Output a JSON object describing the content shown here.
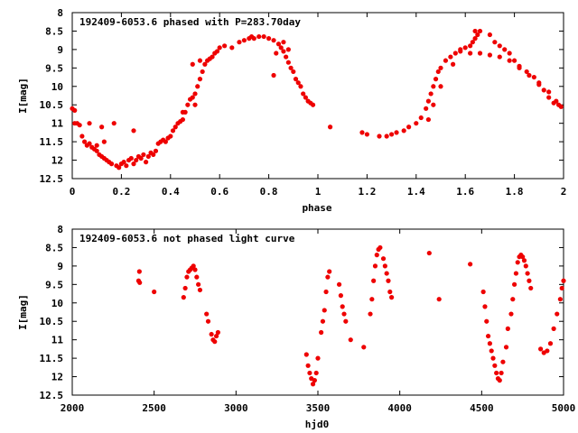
{
  "chart_data": [
    {
      "type": "scatter",
      "title": "192409-6053.6 phased with P=283.70day",
      "xlabel": "phase",
      "ylabel": "I[mag]",
      "xlim": [
        0,
        2
      ],
      "ylim": [
        12.5,
        8
      ],
      "y_inverted": true,
      "grid": false,
      "marker_color": "#ee0000",
      "x_ticks": [
        "0",
        "0.2",
        "0.4",
        "0.6",
        "0.8",
        "1",
        "1.2",
        "1.4",
        "1.6",
        "1.8",
        "2"
      ],
      "y_ticks": [
        "8",
        "8.5",
        "9",
        "9.5",
        "10",
        "10.5",
        "11",
        "11.5",
        "12",
        "12.5"
      ],
      "series": [
        {
          "points": [
            [
              0.0,
              10.6
            ],
            [
              0.01,
              10.65
            ],
            [
              0.01,
              11.0
            ],
            [
              0.02,
              11.0
            ],
            [
              0.03,
              11.05
            ],
            [
              0.04,
              11.35
            ],
            [
              0.05,
              11.5
            ],
            [
              0.06,
              11.6
            ],
            [
              0.07,
              11.55
            ],
            [
              0.08,
              11.65
            ],
            [
              0.09,
              11.7
            ],
            [
              0.1,
              11.75
            ],
            [
              0.11,
              11.85
            ],
            [
              0.12,
              11.9
            ],
            [
              0.13,
              11.95
            ],
            [
              0.14,
              12.0
            ],
            [
              0.15,
              12.05
            ],
            [
              0.16,
              12.1
            ],
            [
              0.18,
              12.15
            ],
            [
              0.19,
              12.2
            ],
            [
              0.2,
              12.1
            ],
            [
              0.21,
              12.05
            ],
            [
              0.22,
              12.15
            ],
            [
              0.23,
              12.0
            ],
            [
              0.24,
              11.95
            ],
            [
              0.25,
              12.1
            ],
            [
              0.26,
              12.0
            ],
            [
              0.27,
              11.9
            ],
            [
              0.28,
              11.95
            ],
            [
              0.29,
              11.85
            ],
            [
              0.3,
              12.05
            ],
            [
              0.31,
              11.9
            ],
            [
              0.32,
              11.8
            ],
            [
              0.33,
              11.85
            ],
            [
              0.34,
              11.75
            ],
            [
              0.35,
              11.55
            ],
            [
              0.36,
              11.5
            ],
            [
              0.37,
              11.45
            ],
            [
              0.38,
              11.5
            ],
            [
              0.39,
              11.4
            ],
            [
              0.4,
              11.35
            ],
            [
              0.41,
              11.2
            ],
            [
              0.42,
              11.1
            ],
            [
              0.43,
              11.0
            ],
            [
              0.44,
              10.95
            ],
            [
              0.45,
              10.9
            ],
            [
              0.46,
              10.7
            ],
            [
              0.47,
              10.5
            ],
            [
              0.48,
              10.35
            ],
            [
              0.49,
              10.3
            ],
            [
              0.5,
              10.2
            ],
            [
              0.51,
              10.0
            ],
            [
              0.52,
              9.8
            ],
            [
              0.53,
              9.6
            ],
            [
              0.54,
              9.4
            ],
            [
              0.55,
              9.3
            ],
            [
              0.56,
              9.25
            ],
            [
              0.57,
              9.2
            ],
            [
              0.58,
              9.1
            ],
            [
              0.59,
              9.05
            ],
            [
              0.6,
              8.95
            ],
            [
              0.62,
              8.9
            ],
            [
              0.65,
              8.95
            ],
            [
              0.68,
              8.8
            ],
            [
              0.7,
              8.75
            ],
            [
              0.72,
              8.7
            ],
            [
              0.73,
              8.65
            ],
            [
              0.74,
              8.7
            ],
            [
              0.76,
              8.65
            ],
            [
              0.78,
              8.65
            ],
            [
              0.8,
              8.7
            ],
            [
              0.82,
              8.75
            ],
            [
              0.84,
              8.85
            ],
            [
              0.85,
              8.95
            ],
            [
              0.86,
              9.05
            ],
            [
              0.87,
              9.2
            ],
            [
              0.88,
              9.35
            ],
            [
              0.89,
              9.5
            ],
            [
              0.9,
              9.6
            ],
            [
              0.91,
              9.8
            ],
            [
              0.92,
              9.9
            ],
            [
              0.93,
              10.0
            ],
            [
              0.94,
              10.2
            ],
            [
              0.95,
              10.3
            ],
            [
              0.96,
              10.4
            ],
            [
              0.97,
              10.45
            ],
            [
              0.98,
              10.5
            ],
            [
              0.07,
              11.0
            ],
            [
              0.12,
              11.1
            ],
            [
              0.17,
              11.0
            ],
            [
              0.1,
              11.6
            ],
            [
              0.13,
              11.5
            ],
            [
              0.25,
              11.2
            ],
            [
              0.45,
              10.7
            ],
            [
              0.49,
              9.4
            ],
            [
              0.52,
              9.3
            ],
            [
              0.5,
              10.5
            ],
            [
              0.83,
              9.1
            ],
            [
              0.86,
              8.8
            ],
            [
              0.88,
              9.0
            ],
            [
              0.82,
              9.7
            ],
            [
              1.05,
              11.1
            ],
            [
              1.18,
              11.25
            ],
            [
              1.2,
              11.3
            ],
            [
              1.25,
              11.35
            ],
            [
              1.28,
              11.35
            ],
            [
              1.3,
              11.3
            ],
            [
              1.32,
              11.25
            ],
            [
              1.35,
              11.2
            ],
            [
              1.37,
              11.1
            ],
            [
              1.4,
              11.0
            ],
            [
              1.42,
              10.85
            ],
            [
              1.44,
              10.6
            ],
            [
              1.45,
              10.4
            ],
            [
              1.46,
              10.2
            ],
            [
              1.47,
              10.0
            ],
            [
              1.48,
              9.8
            ],
            [
              1.49,
              9.6
            ],
            [
              1.5,
              9.5
            ],
            [
              1.52,
              9.3
            ],
            [
              1.54,
              9.2
            ],
            [
              1.56,
              9.1
            ],
            [
              1.58,
              9.0
            ],
            [
              1.6,
              8.95
            ],
            [
              1.62,
              8.9
            ],
            [
              1.63,
              8.8
            ],
            [
              1.64,
              8.7
            ],
            [
              1.65,
              8.6
            ],
            [
              1.66,
              8.5
            ],
            [
              1.7,
              8.6
            ],
            [
              1.72,
              8.8
            ],
            [
              1.74,
              8.9
            ],
            [
              1.76,
              9.0
            ],
            [
              1.78,
              9.1
            ],
            [
              1.8,
              9.3
            ],
            [
              1.82,
              9.45
            ],
            [
              1.85,
              9.6
            ],
            [
              1.88,
              9.75
            ],
            [
              1.9,
              9.9
            ],
            [
              1.92,
              10.1
            ],
            [
              1.94,
              10.3
            ],
            [
              1.96,
              10.45
            ],
            [
              1.98,
              10.5
            ],
            [
              1.99,
              10.55
            ],
            [
              1.58,
              9.05
            ],
            [
              1.62,
              9.1
            ],
            [
              1.66,
              9.1
            ],
            [
              1.7,
              9.15
            ],
            [
              1.74,
              9.2
            ],
            [
              1.78,
              9.3
            ],
            [
              1.82,
              9.5
            ],
            [
              1.86,
              9.7
            ],
            [
              1.9,
              9.95
            ],
            [
              1.94,
              10.15
            ],
            [
              1.97,
              10.4
            ],
            [
              1.64,
              8.5
            ],
            [
              1.55,
              9.4
            ],
            [
              1.5,
              10.0
            ],
            [
              1.47,
              10.5
            ],
            [
              1.45,
              10.9
            ]
          ]
        }
      ]
    },
    {
      "type": "scatter",
      "title": "192409-6053.6 not phased light curve",
      "xlabel": "hjd0",
      "ylabel": "I[mag]",
      "xlim": [
        2000,
        5000
      ],
      "ylim": [
        12.5,
        8
      ],
      "y_inverted": true,
      "grid": false,
      "marker_color": "#ee0000",
      "x_ticks": [
        "2000",
        "2500",
        "3000",
        "3500",
        "4000",
        "4500",
        "5000"
      ],
      "y_ticks": [
        "8",
        "8.5",
        "9",
        "9.5",
        "10",
        "10.5",
        "11",
        "11.5",
        "12",
        "12.5"
      ],
      "series": [
        {
          "points": [
            [
              2405,
              9.4
            ],
            [
              2410,
              9.15
            ],
            [
              2412,
              9.45
            ],
            [
              2500,
              9.7
            ],
            [
              2680,
              9.85
            ],
            [
              2690,
              9.6
            ],
            [
              2700,
              9.3
            ],
            [
              2710,
              9.15
            ],
            [
              2720,
              9.1
            ],
            [
              2730,
              9.05
            ],
            [
              2740,
              9.0
            ],
            [
              2750,
              9.1
            ],
            [
              2760,
              9.3
            ],
            [
              2770,
              9.5
            ],
            [
              2780,
              9.65
            ],
            [
              2820,
              10.3
            ],
            [
              2830,
              10.5
            ],
            [
              2850,
              10.85
            ],
            [
              2860,
              11.0
            ],
            [
              2870,
              11.05
            ],
            [
              2880,
              10.9
            ],
            [
              2890,
              10.8
            ],
            [
              3430,
              11.4
            ],
            [
              3440,
              11.7
            ],
            [
              3450,
              11.9
            ],
            [
              3460,
              12.05
            ],
            [
              3470,
              12.2
            ],
            [
              3480,
              12.1
            ],
            [
              3490,
              11.9
            ],
            [
              3500,
              11.5
            ],
            [
              3520,
              10.8
            ],
            [
              3530,
              10.5
            ],
            [
              3540,
              10.2
            ],
            [
              3550,
              9.7
            ],
            [
              3560,
              9.3
            ],
            [
              3570,
              9.15
            ],
            [
              3630,
              9.5
            ],
            [
              3640,
              9.8
            ],
            [
              3650,
              10.1
            ],
            [
              3660,
              10.3
            ],
            [
              3670,
              10.5
            ],
            [
              3700,
              11.0
            ],
            [
              3780,
              11.2
            ],
            [
              3820,
              10.3
            ],
            [
              3830,
              9.9
            ],
            [
              3840,
              9.4
            ],
            [
              3850,
              9.0
            ],
            [
              3860,
              8.7
            ],
            [
              3870,
              8.55
            ],
            [
              3880,
              8.5
            ],
            [
              3900,
              8.8
            ],
            [
              3910,
              9.0
            ],
            [
              3920,
              9.2
            ],
            [
              3930,
              9.4
            ],
            [
              3940,
              9.7
            ],
            [
              3950,
              9.85
            ],
            [
              4180,
              8.65
            ],
            [
              4240,
              9.9
            ],
            [
              4430,
              8.95
            ],
            [
              4510,
              9.7
            ],
            [
              4520,
              10.1
            ],
            [
              4530,
              10.5
            ],
            [
              4540,
              10.9
            ],
            [
              4550,
              11.1
            ],
            [
              4560,
              11.3
            ],
            [
              4570,
              11.5
            ],
            [
              4580,
              11.7
            ],
            [
              4590,
              11.9
            ],
            [
              4600,
              12.05
            ],
            [
              4610,
              12.1
            ],
            [
              4620,
              11.9
            ],
            [
              4630,
              11.6
            ],
            [
              4650,
              11.2
            ],
            [
              4660,
              10.7
            ],
            [
              4680,
              10.3
            ],
            [
              4690,
              9.9
            ],
            [
              4700,
              9.5
            ],
            [
              4710,
              9.2
            ],
            [
              4720,
              8.9
            ],
            [
              4730,
              8.75
            ],
            [
              4740,
              8.7
            ],
            [
              4750,
              8.75
            ],
            [
              4760,
              8.85
            ],
            [
              4770,
              9.0
            ],
            [
              4780,
              9.2
            ],
            [
              4790,
              9.4
            ],
            [
              4800,
              9.6
            ],
            [
              4860,
              11.25
            ],
            [
              4880,
              11.35
            ],
            [
              4900,
              11.3
            ],
            [
              4920,
              11.1
            ],
            [
              4940,
              10.7
            ],
            [
              4960,
              10.3
            ],
            [
              4980,
              9.9
            ],
            [
              4990,
              9.6
            ],
            [
              5000,
              9.4
            ]
          ]
        }
      ]
    }
  ]
}
